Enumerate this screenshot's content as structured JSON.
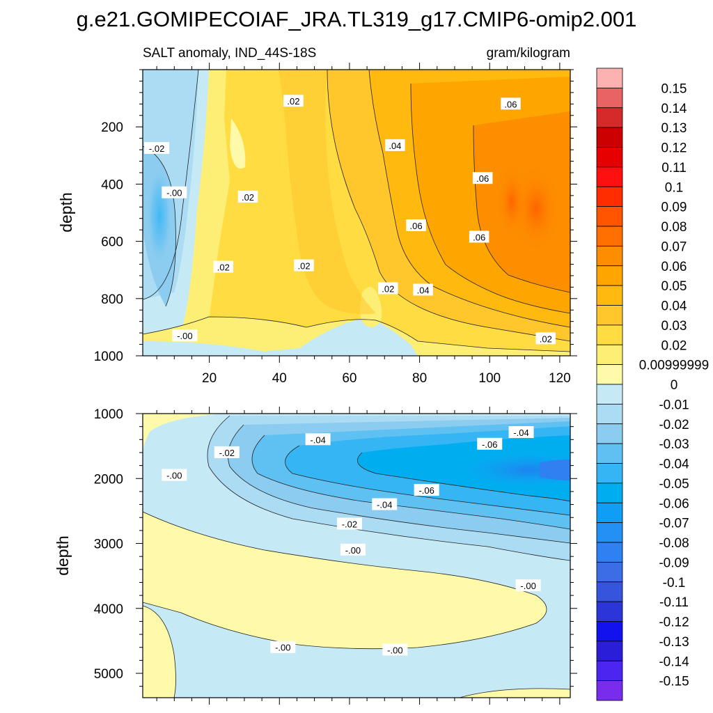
{
  "title": "g.e21.GOMIPECOIAF_JRA.TL319_g17.CMIP6-omip2.001",
  "chart_data": {
    "type": "heatmap",
    "variable_label": "SALT anomaly, IND_44S-18S",
    "units_label": "gram/kilogram",
    "x_range": [
      1,
      123
    ],
    "x_ticks": [
      20,
      40,
      60,
      80,
      100,
      120
    ],
    "panels": [
      {
        "ylabel": "depth",
        "ylim": [
          0,
          1000
        ],
        "y_ticks": [
          200,
          400,
          600,
          800,
          1000
        ],
        "contour_labels": [
          {
            "text": ".02",
            "x": 44,
            "y": 110
          },
          {
            "text": ".06",
            "x": 106,
            "y": 120
          },
          {
            "text": "-.02",
            "x": 5,
            "y": 275
          },
          {
            "text": ".04",
            "x": 73,
            "y": 265
          },
          {
            "text": "-.00",
            "x": 10,
            "y": 430
          },
          {
            "text": ".06",
            "x": 98,
            "y": 380
          },
          {
            "text": ".02",
            "x": 31,
            "y": 445
          },
          {
            "text": ".06",
            "x": 79,
            "y": 545
          },
          {
            "text": ".06",
            "x": 97,
            "y": 585
          },
          {
            "text": ".02",
            "x": 24,
            "y": 690
          },
          {
            "text": ".02",
            "x": 47,
            "y": 685
          },
          {
            "text": ".02",
            "x": 71,
            "y": 765
          },
          {
            "text": ".04",
            "x": 81,
            "y": 770
          },
          {
            "text": "-.00",
            "x": 13,
            "y": 930
          },
          {
            "text": ".02",
            "x": 116,
            "y": 940
          }
        ]
      },
      {
        "ylabel": "depth",
        "ylim": [
          1000,
          5375
        ],
        "y_ticks": [
          1000,
          2000,
          3000,
          4000,
          5000
        ],
        "contour_labels": [
          {
            "text": "-.02",
            "x": 25,
            "y": 1600
          },
          {
            "text": "-.04",
            "x": 51,
            "y": 1400
          },
          {
            "text": "-.04",
            "x": 109,
            "y": 1290
          },
          {
            "text": "-.06",
            "x": 100,
            "y": 1470
          },
          {
            "text": "-.00",
            "x": 10,
            "y": 1950
          },
          {
            "text": "-.06",
            "x": 82,
            "y": 2180
          },
          {
            "text": "-.04",
            "x": 70,
            "y": 2400
          },
          {
            "text": "-.02",
            "x": 60,
            "y": 2700
          },
          {
            "text": "-.00",
            "x": 61,
            "y": 3100
          },
          {
            "text": "-.00",
            "x": 111,
            "y": 3650
          },
          {
            "text": "-.00",
            "x": 41,
            "y": 4600
          },
          {
            "text": "-.00",
            "x": 73,
            "y": 4640
          }
        ]
      }
    ],
    "colorbar": {
      "labels": [
        "0.15",
        "0.14",
        "0.13",
        "0.12",
        "0.11",
        "0.1",
        "0.09",
        "0.08",
        "0.07",
        "0.06",
        "0.05",
        "0.04",
        "0.03",
        "0.02",
        "0.00999999",
        "0",
        "-0.01",
        "-0.02",
        "-0.03",
        "-0.04",
        "-0.05",
        "-0.06",
        "-0.07",
        "-0.08",
        "-0.09",
        "-0.1",
        "-0.11",
        "-0.12",
        "-0.13",
        "-0.14",
        "-0.15"
      ],
      "colors": [
        "#fdb2b2",
        "#e86464",
        "#d42a2a",
        "#cc0000",
        "#e60000",
        "#ff1010",
        "#ff2d00",
        "#ff5500",
        "#ff7000",
        "#fd8e00",
        "#fea500",
        "#ffb90f",
        "#ffc72c",
        "#ffdc41",
        "#fdee75",
        "#fffaaa",
        "#c6e9f6",
        "#acdcf3",
        "#8cccf0",
        "#5fc0f2",
        "#36b5f5",
        "#00aeef",
        "#0f9ef3",
        "#248ff5",
        "#2f80f0",
        "#3c6de7",
        "#3655dc",
        "#2b35d8",
        "#1212ee",
        "#2a1ed8",
        "#4c25f0",
        "#7a2cec"
      ]
    }
  }
}
